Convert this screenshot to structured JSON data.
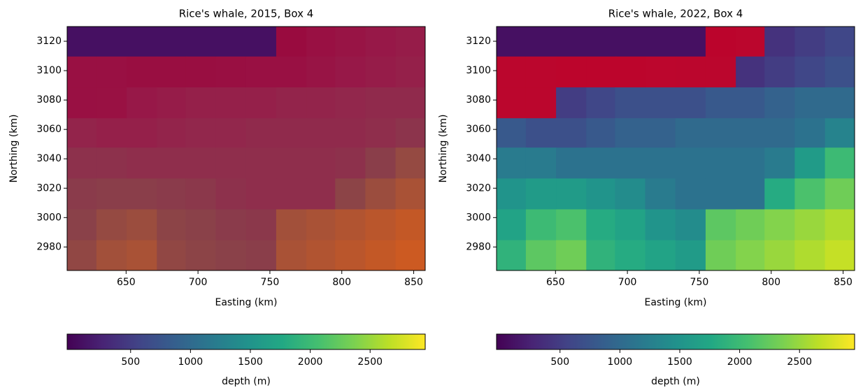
{
  "chart_data": [
    {
      "type": "heatmap",
      "title": "Rice's whale, 2015, Box 4",
      "x_label": "Easting (km)",
      "y_label": "Northing (km)",
      "x": [
        619,
        640,
        661,
        682,
        702,
        723,
        744,
        765,
        786,
        806,
        827,
        848
      ],
      "y": [
        3120,
        3099,
        3078,
        3057,
        3037,
        3016,
        2995,
        2974
      ],
      "z": [
        [
          100,
          100,
          100,
          100,
          100,
          100,
          100,
          200,
          300,
          400,
          500,
          600
        ],
        [
          300,
          300,
          250,
          250,
          250,
          280,
          300,
          300,
          400,
          500,
          600,
          700
        ],
        [
          300,
          320,
          500,
          600,
          700,
          700,
          700,
          800,
          800,
          900,
          1000,
          1000
        ],
        [
          800,
          700,
          700,
          800,
          900,
          900,
          1000,
          1000,
          1000,
          1000,
          1100,
          1300
        ],
        [
          1200,
          1200,
          1100,
          1100,
          1100,
          1100,
          1100,
          1100,
          1100,
          1200,
          1600,
          2000
        ],
        [
          1500,
          1600,
          1600,
          1500,
          1400,
          1200,
          1100,
          1100,
          1100,
          1800,
          2100,
          2300
        ],
        [
          1700,
          2000,
          2100,
          1800,
          1700,
          1500,
          1400,
          2200,
          2300,
          2400,
          2500,
          2600
        ],
        [
          1900,
          2200,
          2300,
          1900,
          1800,
          1700,
          1600,
          2300,
          2400,
          2500,
          2600,
          2700
        ]
      ],
      "xlim": [
        609,
        858
      ],
      "ylim": [
        2964,
        3130
      ],
      "xticks": [
        650,
        700,
        750,
        800,
        850
      ],
      "yticks": [
        2980,
        3000,
        3020,
        3040,
        3060,
        3080,
        3100,
        3120
      ],
      "colormap": "viridis",
      "clim": [
        -30,
        2960
      ],
      "colorbar_label": "depth (m)",
      "colorbar_ticks": [
        500,
        1000,
        1500,
        2000,
        2500
      ],
      "highlight_range": [
        150,
        3000
      ],
      "highlight_color": "#d00020",
      "highlight_opacity": 0.6
    },
    {
      "type": "heatmap",
      "title": "Rice's whale, 2022, Box 4",
      "x_label": "Easting (km)",
      "y_label": "Northing (km)",
      "x": [
        619,
        640,
        661,
        682,
        702,
        723,
        744,
        765,
        786,
        806,
        827,
        848
      ],
      "y": [
        3120,
        3099,
        3078,
        3057,
        3037,
        3016,
        2995,
        2974
      ],
      "z": [
        [
          100,
          100,
          100,
          100,
          100,
          100,
          100,
          200,
          300,
          400,
          500,
          600
        ],
        [
          300,
          300,
          250,
          250,
          250,
          280,
          300,
          300,
          400,
          500,
          600,
          700
        ],
        [
          300,
          320,
          500,
          600,
          700,
          700,
          700,
          800,
          800,
          900,
          1000,
          1000
        ],
        [
          800,
          700,
          700,
          800,
          900,
          900,
          1000,
          1000,
          1000,
          1000,
          1100,
          1300
        ],
        [
          1200,
          1200,
          1100,
          1100,
          1100,
          1100,
          1100,
          1100,
          1100,
          1200,
          1600,
          2000
        ],
        [
          1500,
          1600,
          1600,
          1500,
          1400,
          1200,
          1100,
          1100,
          1100,
          1800,
          2100,
          2300
        ],
        [
          1700,
          2000,
          2100,
          1800,
          1700,
          1500,
          1400,
          2200,
          2300,
          2400,
          2500,
          2600
        ],
        [
          1900,
          2200,
          2300,
          1900,
          1800,
          1700,
          1600,
          2300,
          2400,
          2500,
          2600,
          2700
        ]
      ],
      "xlim": [
        609,
        858
      ],
      "ylim": [
        2964,
        3130
      ],
      "xticks": [
        650,
        700,
        750,
        800,
        850
      ],
      "yticks": [
        2980,
        3000,
        3020,
        3040,
        3060,
        3080,
        3100,
        3120
      ],
      "colormap": "viridis",
      "clim": [
        -30,
        2960
      ],
      "colorbar_label": "depth (m)",
      "colorbar_ticks": [
        500,
        1000,
        1500,
        2000,
        2500
      ],
      "highlight_range": [
        150,
        320
      ],
      "highlight_color": "#d00020",
      "highlight_opacity": 0.85
    }
  ]
}
